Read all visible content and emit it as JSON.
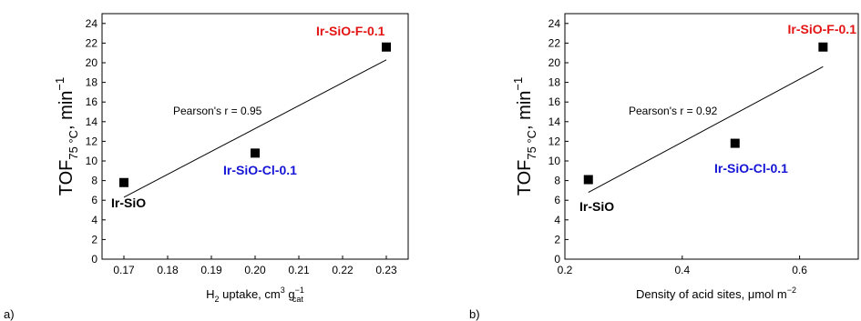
{
  "chart_data": [
    {
      "type": "scatter",
      "panel_label": "a)",
      "x_label": {
        "pre": "H",
        "sub1": "2",
        "mid": " uptake, cm",
        "sup1": "3",
        "mid2": " g",
        "sup2": "−1",
        "sub2": "cat"
      },
      "y_label": {
        "pre": "TOF",
        "sub": "75 °C",
        "mid": ", min",
        "sup": "−1"
      },
      "xlim": [
        0.165,
        0.235
      ],
      "ylim": [
        0,
        25
      ],
      "x_ticks": [
        "0.17",
        "0.18",
        "0.19",
        "0.20",
        "0.21",
        "0.22",
        "0.23"
      ],
      "y_ticks": [
        "0",
        "2",
        "4",
        "6",
        "8",
        "10",
        "12",
        "14",
        "16",
        "18",
        "20",
        "22",
        "24"
      ],
      "points": [
        {
          "label": "Ir-SiO",
          "x": 0.17,
          "y": 7.8,
          "color": "#000000"
        },
        {
          "label": "Ir-SiO-Cl-0.1",
          "x": 0.2,
          "y": 10.8,
          "color": "#1515d6"
        },
        {
          "label": "Ir-SiO-F-0.1",
          "x": 0.23,
          "y": 21.6,
          "color": "#e31414"
        }
      ],
      "fit_line": {
        "x": [
          0.17,
          0.23
        ],
        "y": [
          6.3,
          20.3
        ]
      },
      "annotation": "Pearson's r = 0.95",
      "grid": false
    },
    {
      "type": "scatter",
      "panel_label": "b)",
      "x_label": {
        "text": "Density of acid sites, μmol m",
        "sup": "−2"
      },
      "y_label": {
        "pre": "TOF",
        "sub": "75 °C",
        "mid": ", min",
        "sup": "−1"
      },
      "xlim": [
        0.2,
        0.7
      ],
      "ylim": [
        0,
        25
      ],
      "x_ticks": [
        "0.2",
        "0.4",
        "0.6"
      ],
      "y_ticks": [
        "0",
        "2",
        "4",
        "6",
        "8",
        "10",
        "12",
        "14",
        "16",
        "18",
        "20",
        "22",
        "24"
      ],
      "points": [
        {
          "label": "Ir-SiO",
          "x": 0.24,
          "y": 8.1,
          "color": "#000000"
        },
        {
          "label": "Ir-SiO-Cl-0.1",
          "x": 0.49,
          "y": 11.8,
          "color": "#1515d6"
        },
        {
          "label": "Ir-SiO-F-0.1",
          "x": 0.64,
          "y": 21.6,
          "color": "#e31414"
        }
      ],
      "fit_line": {
        "x": [
          0.24,
          0.64
        ],
        "y": [
          6.8,
          19.6
        ]
      },
      "annotation": "Pearson's r = 0.92",
      "grid": false
    }
  ]
}
